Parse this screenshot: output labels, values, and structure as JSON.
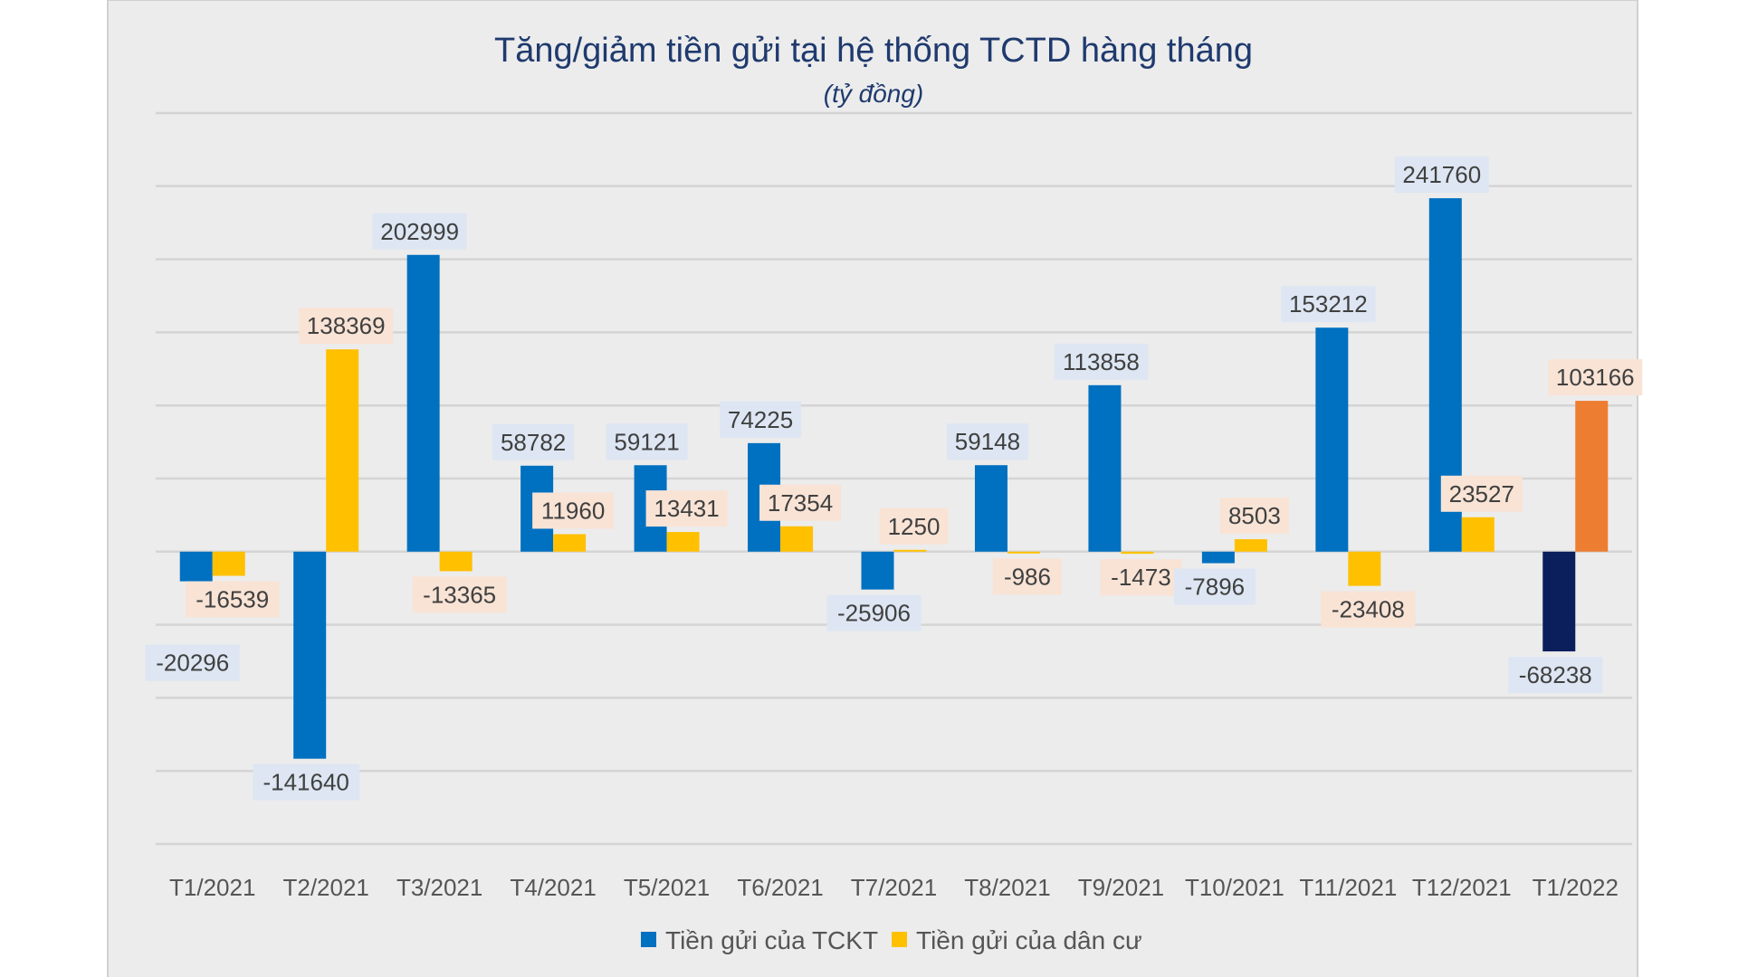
{
  "chart_data": {
    "type": "bar",
    "title": "Tăng/giảm tiền gửi tại hệ thống TCTD hàng tháng",
    "subtitle": "(tỷ đồng)",
    "xlabel": "",
    "ylabel": "",
    "ylim": [
      -200000,
      300000
    ],
    "grid": true,
    "legend_position": "bottom",
    "categories": [
      "T1/2021",
      "T2/2021",
      "T3/2021",
      "T4/2021",
      "T5/2021",
      "T6/2021",
      "T7/2021",
      "T8/2021",
      "T9/2021",
      "T10/2021",
      "T11/2021",
      "T12/2021",
      "T1/2022"
    ],
    "series": [
      {
        "name": "Tiền gửi của TCKT",
        "color": "#0070c0",
        "highlight_last_color": "#0b1f5c",
        "label_bg": "#dde6f2",
        "values": [
          -20296,
          -141640,
          202999,
          58782,
          59121,
          74225,
          -25906,
          59148,
          113858,
          -7896,
          153212,
          241760,
          -68238
        ]
      },
      {
        "name": "Tiền gửi của dân cư",
        "color": "#ffc000",
        "highlight_last_color": "#ed7d31",
        "label_bg": "#f8e3d5",
        "values": [
          -16539,
          138369,
          -13365,
          11960,
          13431,
          17354,
          1250,
          -986,
          -1473,
          8503,
          -23408,
          23527,
          103166
        ]
      }
    ]
  }
}
